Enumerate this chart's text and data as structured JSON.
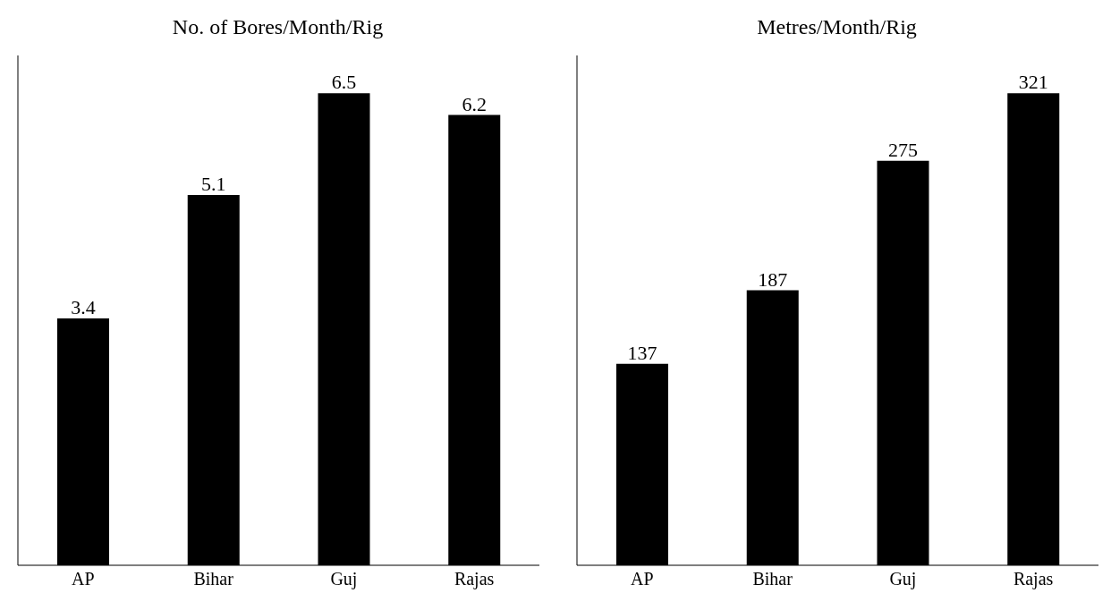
{
  "chart_data": [
    {
      "type": "bar",
      "title": "No. of Bores/Month/Rig",
      "categories": [
        "AP",
        "Bihar",
        "Guj",
        "Rajas"
      ],
      "values": [
        3.4,
        5.1,
        6.5,
        6.2
      ],
      "color": "#000000",
      "data_labels": true,
      "grid": false,
      "legend": false
    },
    {
      "type": "bar",
      "title": "Metres/Month/Rig",
      "categories": [
        "AP",
        "Bihar",
        "Guj",
        "Rajas"
      ],
      "values": [
        137,
        187,
        275,
        321
      ],
      "color": "#000000",
      "data_labels": true,
      "grid": false,
      "legend": false
    }
  ]
}
